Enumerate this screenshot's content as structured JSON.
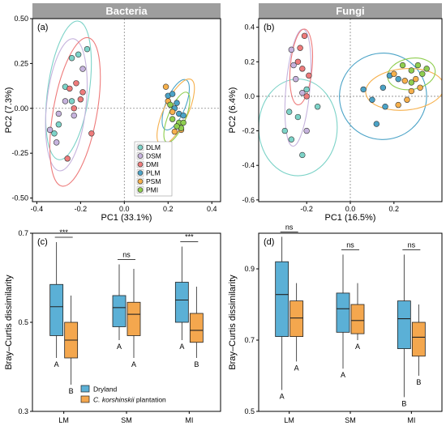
{
  "chart_data": [
    {
      "panel": "(a)",
      "type": "scatter",
      "strip_title": "Bacteria",
      "xlabel": "PC1 (33.1%)",
      "ylabel": "PC2 (7.3%)",
      "xlim": [
        -0.42,
        0.44
      ],
      "ylim": [
        -0.52,
        0.5
      ],
      "xticks": [
        -0.4,
        -0.2,
        0.0,
        0.2,
        0.4
      ],
      "xtick_labels": [
        "-0.4",
        "-0.2",
        "0.0",
        "0.2",
        "0.4"
      ],
      "yticks": [
        -0.5,
        -0.25,
        0.0,
        0.25,
        0.5
      ],
      "ytick_labels": [
        "-0.50",
        "-0.25",
        "0.00",
        "0.25",
        "0.50"
      ],
      "legend": "bottom-center",
      "series": [
        {
          "name": "DLM",
          "color": "#7dd3c8",
          "points": [
            [
              -0.24,
              0.28
            ],
            [
              -0.21,
              0.3
            ],
            [
              -0.17,
              0.33
            ],
            [
              -0.27,
              0.12
            ],
            [
              -0.24,
              0.04
            ],
            [
              -0.3,
              -0.09
            ],
            [
              -0.32,
              -0.14
            ]
          ],
          "ellipse": {
            "cx": -0.255,
            "cy": 0.1,
            "rx": 0.095,
            "ry": 0.39,
            "angle": 8
          }
        },
        {
          "name": "DSM",
          "color": "#c6b3dd",
          "points": [
            [
              -0.34,
              -0.12
            ],
            [
              -0.31,
              -0.19
            ],
            [
              -0.27,
              0.04
            ],
            [
              -0.19,
              0.22
            ],
            [
              -0.23,
              -0.04
            ],
            [
              -0.3,
              -0.03
            ]
          ],
          "ellipse": {
            "cx": -0.265,
            "cy": 0.02,
            "rx": 0.09,
            "ry": 0.37,
            "angle": 6
          }
        },
        {
          "name": "DMI",
          "color": "#ee7b7b",
          "points": [
            [
              -0.25,
              0.11
            ],
            [
              -0.22,
              0.14
            ],
            [
              -0.19,
              0.09
            ],
            [
              -0.15,
              -0.14
            ],
            [
              -0.26,
              -0.28
            ],
            [
              -0.23,
              0.0
            ],
            [
              -0.2,
              0.05
            ]
          ],
          "ellipse": {
            "cx": -0.225,
            "cy": -0.02,
            "rx": 0.1,
            "ry": 0.42,
            "angle": 10
          }
        },
        {
          "name": "PLM",
          "color": "#4ba3c7",
          "points": [
            [
              0.2,
              0.07
            ],
            [
              0.23,
              0.0
            ],
            [
              0.25,
              -0.03
            ],
            [
              0.24,
              0.03
            ],
            [
              0.22,
              0.08
            ],
            [
              0.27,
              -0.04
            ]
          ],
          "ellipse": {
            "cx": 0.235,
            "cy": 0.02,
            "rx": 0.045,
            "ry": 0.15,
            "angle": 22
          }
        },
        {
          "name": "PSM",
          "color": "#f6b04c",
          "points": [
            [
              0.19,
              0.12
            ],
            [
              0.2,
              0.04
            ],
            [
              0.24,
              -0.1
            ],
            [
              0.26,
              -0.12
            ],
            [
              0.22,
              -0.02
            ],
            [
              0.23,
              -0.13
            ]
          ],
          "ellipse": {
            "cx": 0.235,
            "cy": -0.02,
            "rx": 0.055,
            "ry": 0.2,
            "angle": 25
          }
        },
        {
          "name": "PMI",
          "color": "#8fce4f",
          "points": [
            [
              0.21,
              0.02
            ],
            [
              0.22,
              -0.06
            ],
            [
              0.25,
              -0.08
            ],
            [
              0.26,
              -0.11
            ],
            [
              0.24,
              -0.1
            ],
            [
              0.27,
              -0.08
            ]
          ],
          "ellipse": {
            "cx": 0.24,
            "cy": -0.05,
            "rx": 0.04,
            "ry": 0.15,
            "angle": 22
          }
        }
      ]
    },
    {
      "panel": "(b)",
      "type": "scatter",
      "strip_title": "Fungi",
      "xlabel": "PC1 (16.5%)",
      "ylabel": "PC2 (6.4%)",
      "xlim": [
        -0.42,
        0.42
      ],
      "ylim": [
        -0.61,
        0.45
      ],
      "xticks": [
        -0.2,
        0.0,
        0.2
      ],
      "xtick_labels": [
        "-0.2",
        "0.0",
        "0.2"
      ],
      "yticks": [
        -0.6,
        -0.4,
        -0.2,
        0.0,
        0.2,
        0.4
      ],
      "ytick_labels": [
        "-0.6",
        "-0.4",
        "-0.2",
        "0.0",
        "0.2",
        "0.4"
      ],
      "series": [
        {
          "name": "DLM",
          "color": "#7dd3c8",
          "points": [
            [
              -0.3,
              -0.2
            ],
            [
              -0.27,
              -0.25
            ],
            [
              -0.22,
              -0.34
            ],
            [
              -0.15,
              -0.06
            ],
            [
              -0.24,
              -0.12
            ],
            [
              -0.2,
              0.04
            ],
            [
              -0.28,
              -0.09
            ]
          ],
          "ellipse": {
            "cx": -0.24,
            "cy": -0.18,
            "rx": 0.18,
            "ry": 0.28,
            "angle": 0
          }
        },
        {
          "name": "DSM",
          "color": "#c6b3dd",
          "points": [
            [
              -0.27,
              0.27
            ],
            [
              -0.25,
              0.1
            ],
            [
              -0.22,
              0.02
            ],
            [
              -0.2,
              -0.2
            ],
            [
              -0.26,
              0.18
            ]
          ],
          "ellipse": {
            "cx": -0.24,
            "cy": 0.05,
            "rx": 0.055,
            "ry": 0.34,
            "angle": 5
          }
        },
        {
          "name": "DMI",
          "color": "#ee7b7b",
          "points": [
            [
              -0.21,
              0.35
            ],
            [
              -0.23,
              0.28
            ],
            [
              -0.24,
              0.2
            ],
            [
              -0.19,
              0.12
            ],
            [
              -0.22,
              0.16
            ],
            [
              -0.2,
              0.0
            ]
          ],
          "ellipse": {
            "cx": -0.225,
            "cy": 0.17,
            "rx": 0.05,
            "ry": 0.22,
            "angle": 5
          }
        },
        {
          "name": "PLM",
          "color": "#4ba3c7",
          "points": [
            [
              0.06,
              0.04
            ],
            [
              0.1,
              -0.02
            ],
            [
              0.16,
              -0.06
            ],
            [
              0.18,
              0.12
            ],
            [
              0.12,
              -0.16
            ],
            [
              0.22,
              0.1
            ],
            [
              0.15,
              0.05
            ]
          ],
          "ellipse": {
            "cx": 0.15,
            "cy": 0.0,
            "rx": 0.2,
            "ry": 0.25,
            "angle": -20
          }
        },
        {
          "name": "PSM",
          "color": "#f6b04c",
          "points": [
            [
              0.2,
              0.13
            ],
            [
              0.25,
              0.09
            ],
            [
              0.28,
              0.03
            ],
            [
              0.32,
              0.05
            ],
            [
              0.22,
              -0.05
            ],
            [
              0.3,
              0.1
            ],
            [
              0.26,
              -0.02
            ]
          ],
          "ellipse": {
            "cx": 0.25,
            "cy": 0.04,
            "rx": 0.18,
            "ry": 0.12,
            "angle": -5
          }
        },
        {
          "name": "PMI",
          "color": "#8fce4f",
          "points": [
            [
              0.24,
              0.18
            ],
            [
              0.28,
              0.15
            ],
            [
              0.33,
              0.13
            ],
            [
              0.31,
              0.18
            ],
            [
              0.35,
              0.16
            ],
            [
              0.28,
              0.08
            ]
          ],
          "ellipse": {
            "cx": 0.28,
            "cy": 0.13,
            "rx": 0.11,
            "ry": 0.09,
            "angle": -10
          }
        }
      ]
    },
    {
      "panel": "(c)",
      "type": "box",
      "xlabel": "",
      "ylabel": "Bray–Curtis dissimilarity",
      "ylim": [
        0.3,
        0.7
      ],
      "yticks": [
        0.3,
        0.5,
        0.7
      ],
      "ytick_labels": [
        "0.3",
        "0.5",
        "0.7"
      ],
      "categories": [
        "LM",
        "SM",
        "MI"
      ],
      "legend": "bottom-left",
      "legend_entries": [
        {
          "label": "Dryland",
          "color": "#5bb0d6"
        },
        {
          "label_prefix": "C. korshinskii",
          "label_suffix": " plantation",
          "color": "#f4a74e"
        }
      ],
      "series": [
        {
          "name": "Dryland",
          "color": "#5bb0d6",
          "boxes": [
            {
              "min": 0.42,
              "q1": 0.47,
              "median": 0.535,
              "q3": 0.585,
              "max": 0.68,
              "letter": "A"
            },
            {
              "min": 0.46,
              "q1": 0.49,
              "median": 0.533,
              "q3": 0.56,
              "max": 0.63,
              "letter": "A"
            },
            {
              "min": 0.46,
              "q1": 0.5,
              "median": 0.55,
              "q3": 0.59,
              "max": 0.67,
              "letter": "A"
            }
          ]
        },
        {
          "name": "C. korshinskii plantation",
          "color": "#f4a74e",
          "boxes": [
            {
              "min": 0.36,
              "q1": 0.42,
              "median": 0.46,
              "q3": 0.5,
              "max": 0.56,
              "letter": "B"
            },
            {
              "min": 0.42,
              "q1": 0.47,
              "median": 0.518,
              "q3": 0.545,
              "max": 0.62,
              "letter": "A"
            },
            {
              "min": 0.42,
              "q1": 0.455,
              "median": 0.482,
              "q3": 0.52,
              "max": 0.58,
              "letter": "B"
            }
          ]
        }
      ],
      "significance": [
        "***",
        "ns",
        "***"
      ]
    },
    {
      "panel": "(d)",
      "type": "box",
      "xlabel": "",
      "ylabel": "Bray–Curtis dissimilarity",
      "ylim": [
        0.5,
        1.0
      ],
      "yticks": [
        0.5,
        0.7,
        0.9
      ],
      "ytick_labels": [
        "0.5",
        "0.7",
        "0.9"
      ],
      "categories": [
        "LM",
        "SM",
        "MI"
      ],
      "series": [
        {
          "name": "Dryland",
          "color": "#5bb0d6",
          "boxes": [
            {
              "min": 0.56,
              "q1": 0.71,
              "median": 0.828,
              "q3": 0.92,
              "max": 0.99,
              "letter": "A"
            },
            {
              "min": 0.62,
              "q1": 0.722,
              "median": 0.788,
              "q3": 0.832,
              "max": 0.94,
              "letter": "A"
            },
            {
              "min": 0.54,
              "q1": 0.676,
              "median": 0.76,
              "q3": 0.81,
              "max": 0.94,
              "letter": "B"
            }
          ]
        },
        {
          "name": "C. korshinskii plantation",
          "color": "#f4a74e",
          "boxes": [
            {
              "min": 0.64,
              "q1": 0.71,
              "median": 0.762,
              "q3": 0.81,
              "max": 0.86,
              "letter": "A"
            },
            {
              "min": 0.7,
              "q1": 0.718,
              "median": 0.755,
              "q3": 0.8,
              "max": 0.86,
              "letter": "A"
            },
            {
              "min": 0.6,
              "q1": 0.655,
              "median": 0.708,
              "q3": 0.75,
              "max": 0.8,
              "letter": "B"
            }
          ]
        }
      ],
      "significance": [
        "ns",
        "ns",
        "ns"
      ]
    }
  ]
}
